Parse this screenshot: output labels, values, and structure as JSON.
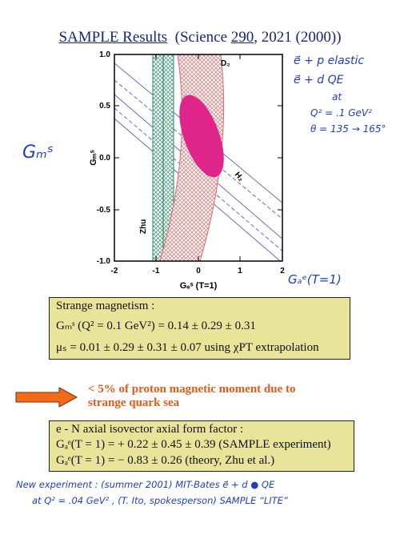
{
  "title": {
    "main": "SAMPLE Results",
    "ref_prefix": "(Science ",
    "ref_volume": "290",
    "ref_suffix": ", 2021 (2000))"
  },
  "plot": {
    "ylabel": "Gₘˢ",
    "xlabel": "Gₐˢ (T=1)",
    "xticks": [
      "-2",
      "-1",
      "0",
      "1",
      "2"
    ],
    "yticks": [
      "1.0",
      "0.5",
      "0.0",
      "-0.5",
      "-1.0"
    ],
    "band_labels": {
      "d2": "D₂",
      "h2": "H₂",
      "zhu": "Zhu"
    }
  },
  "chart_data": {
    "type": "contour",
    "xlim": [
      -2,
      2
    ],
    "ylim": [
      -1.0,
      1.0
    ],
    "bands": [
      {
        "label": "D₂",
        "type": "diagonal-band"
      },
      {
        "label": "H₂",
        "type": "diagonal-band"
      },
      {
        "label": "Zhu",
        "type": "vertical-band",
        "x_range": [
          -1.1,
          -0.55
        ]
      }
    ],
    "ellipse_center": [
      0.2,
      0.12
    ]
  },
  "notes": {
    "right_1": "e⃗ + p   elastic",
    "right_2": "e⃗ + d   QE",
    "right_3": "at",
    "right_4": "Q² = .1 GeV²",
    "right_5": "θ = 135 → 165°",
    "gms": "Gₘˢ",
    "gae": "Gₐᵉ(T=1)"
  },
  "box1": {
    "line1": "Strange magnetism :",
    "line2": "Gₘˢ (Q² = 0.1 GeV²) = 0.14 ± 0.29 ± 0.31",
    "line3": "μₛ = 0.01 ± 0.29 ± 0.31 ± 0.07    using χPT extrapolation"
  },
  "arrow_text": {
    "line1": "< 5% of proton magnetic moment due to",
    "line2": "strange quark sea"
  },
  "box2": {
    "line1": "e - N axial isovector axial form factor :",
    "line2": "Gₐᵉ(T = 1) = + 0.22 ± 0.45 ± 0.39    (SAMPLE experiment)",
    "line3": "Gₐᵉ(T = 1) = − 0.83 ± 0.26              (theory, Zhu et al.)"
  },
  "footer": {
    "line1": "New experiment : (summer 2001)  MIT-Bates  e⃗ + d ● QE",
    "line2": "at  Q² = .04 GeV² ,   (T. Ito, spokesperson)  SAMPLE “LITE”"
  }
}
